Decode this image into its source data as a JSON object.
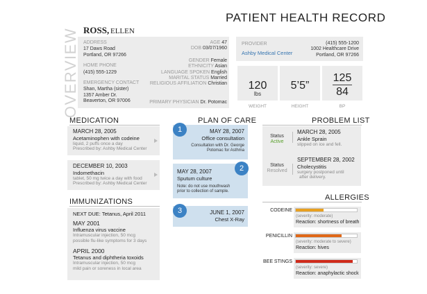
{
  "header": {
    "title": "PATIENT HEALTH RECORD"
  },
  "patient": {
    "last_name": "ROSS,",
    "first_name": "ELLEN",
    "section_label": "OVERVIEW",
    "address_label": "ADDRESS",
    "address_line1": "17 Daws Road",
    "address_line2": "Portland, OR 97266",
    "home_phone_label": "HOME PHONE",
    "home_phone": "(415) 555-1229",
    "emergency_label": "EMERGENCY CONTACT",
    "emergency_name": "Shan, Martha (sister)",
    "emergency_line1": "1357 Amber Dr.",
    "emergency_line2": "Beaverton, OR 97006",
    "age_label": "AGE",
    "age": "47",
    "dob_label": "DOB",
    "dob": "03/07/1960",
    "gender_label": "GENDER",
    "gender": "Female",
    "ethnicity_label": "ETHNICITY",
    "ethnicity": "Asian",
    "language_label": "LANGUAGE SPOKEN",
    "language": "English",
    "marital_label": "MARITAL STATUS",
    "marital": "Married",
    "religion_label": "RELIGIOUS AFFILIATION",
    "religion": "Christian",
    "physician_label": "PRIMARY PHYSICIAN",
    "physician": "Dr. Potomac"
  },
  "provider": {
    "label": "PROVIDER",
    "name": "Ashby Medical Center",
    "phone": "(415) 555-1200",
    "street": "1002 Healthcare Drive",
    "city": "Portland, OR 97266"
  },
  "vitals": {
    "weight_value": "120",
    "weight_unit": "lbs",
    "weight_label": "WEIGHT",
    "height_value": "5’5”",
    "height_label": "HEIGHT",
    "bp_systolic": "125",
    "bp_diastolic": "84",
    "bp_label": "BP"
  },
  "medication": {
    "title": "MEDICATION",
    "items": [
      {
        "date": "MARCH 28, 2005",
        "name": "Acetaminophen with codeine",
        "detail": "liquid, 2 puffs once a day",
        "prescriber": "Prescribed by: Ashby Medical Center"
      },
      {
        "date": "DECEMBER 10, 2003",
        "name": "Indomethacin",
        "detail": "tablet, 50 mg twice a day with food",
        "prescriber": "Prescribed by: Ashby Medical Center"
      }
    ]
  },
  "immunizations": {
    "title": "IMMUNIZATIONS",
    "next_due": "NEXT DUE: Tetanus, April 2011",
    "items": [
      {
        "date": "MAY 2001",
        "name": "Influenza virus vaccine",
        "detail1": "Intramuscular injection, 50 mcg",
        "detail2": "possible flu-like symptoms for 3 days"
      },
      {
        "date": "APRIL 2000",
        "name": "Tetanus and diphtheria toxoids",
        "detail1": "Intramuscular injection, 50 mcg",
        "detail2": "mild pain or soreness in local area"
      }
    ]
  },
  "plan": {
    "title": "PLAN OF CARE",
    "items": [
      {
        "num": "1",
        "date": "MAY 28, 2007",
        "name": "Office consultation",
        "note1": "Consultation with Dr. George",
        "note2": "Potomac for Asthma"
      },
      {
        "num": "2",
        "date": "MAY 28, 2007",
        "name": "Sputum culture",
        "note1": "Note: do not use mouthwash",
        "note2": "prior to collection of sample."
      },
      {
        "num": "3",
        "date": "JUNE 1, 2007",
        "name": "Chest X-Ray"
      }
    ]
  },
  "problems": {
    "title": "PROBLEM LIST",
    "items": [
      {
        "status_label": "Status",
        "status": "Active",
        "status_color": "#5aa02c",
        "date": "MARCH 28, 2005",
        "name": "Ankle Sprain",
        "detail1": "slipped on ice and fell."
      },
      {
        "status_label": "Status",
        "status": "Resolved",
        "status_color": "#999999",
        "date": "SEPTEMBER 28, 2002",
        "name": "Cholecystitis",
        "detail1": "surgery postponed until",
        "detail2": "after delivery."
      }
    ]
  },
  "allergies": {
    "title": "ALLERGIES",
    "items": [
      {
        "name": "CODEINE",
        "severity_text": "(severity: moderate)",
        "reaction": "Reaction: shortness of breath",
        "level": 0.45,
        "color": "#e8a020"
      },
      {
        "name": "PENICILLIN",
        "severity_text": "(severity: moderate to severe)",
        "reaction": "Reaction: hives",
        "level": 0.75,
        "color": "#e06818"
      },
      {
        "name": "BEE STINGS",
        "severity_text": "(severity: severe)",
        "reaction": "Reaction: anaphylactic shock",
        "level": 0.93,
        "color": "#d02a1a"
      }
    ]
  }
}
